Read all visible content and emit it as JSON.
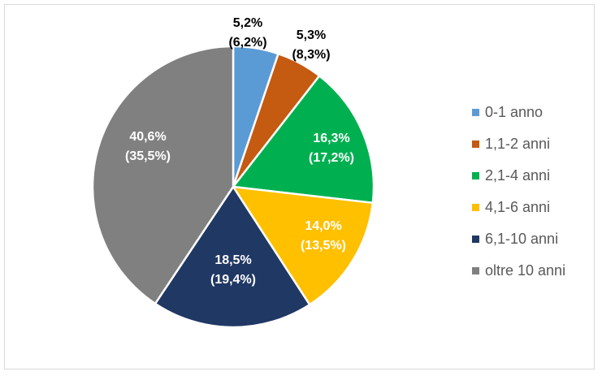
{
  "chart_data": {
    "type": "pie",
    "title": "",
    "start_angle": "top, clockwise",
    "categories": [
      "0-1 anno",
      "1,1-2 anni",
      "2,1-4 anni",
      "4,1-6 anni",
      "6,1-10 anni",
      "oltre 10 anni"
    ],
    "values": [
      5.2,
      5.3,
      16.3,
      14.0,
      18.5,
      40.6
    ],
    "secondary_values": [
      6.2,
      8.3,
      17.2,
      13.5,
      19.4,
      35.5
    ],
    "labels": [
      [
        "5,2%",
        "(6,2%)"
      ],
      [
        "5,3%",
        "(8,3%)"
      ],
      [
        "16,3%",
        "(17,2%)"
      ],
      [
        "14,0%",
        "(13,5%)"
      ],
      [
        "18,5%",
        "(19,4%)"
      ],
      [
        "40,6%",
        "(35,5%)"
      ]
    ],
    "colors": [
      "#5B9BD5",
      "#C55A11",
      "#00B050",
      "#FFC000",
      "#203864",
      "#808080"
    ],
    "label_colors": [
      "#000000",
      "#000000",
      "#ffffff",
      "#ffffff",
      "#ffffff",
      "#ffffff"
    ],
    "legend_position": "right"
  }
}
